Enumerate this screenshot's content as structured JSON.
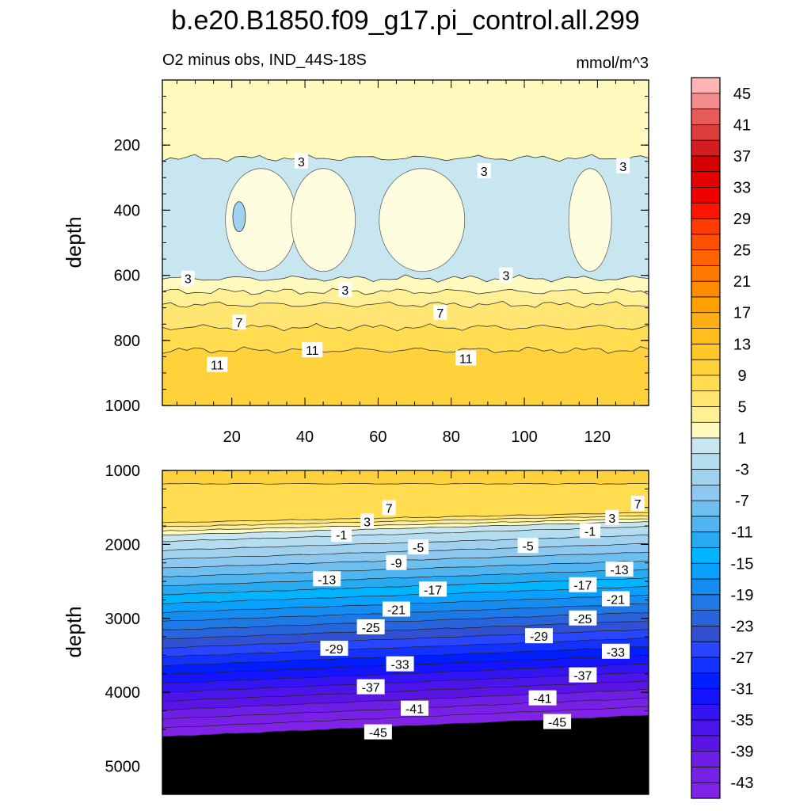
{
  "chart_data": {
    "type": "contour",
    "title": "b.e20.B1850.f09_g17.pi_control.all.299",
    "subtitle": "O2 minus obs, IND_44S-18S",
    "units": "mmol/m^3",
    "colorbar": {
      "levels": [
        47,
        45,
        43,
        41,
        39,
        37,
        35,
        33,
        31,
        29,
        27,
        25,
        23,
        21,
        19,
        17,
        15,
        13,
        11,
        9,
        7,
        5,
        3,
        1,
        -1,
        -3,
        -5,
        -7,
        -9,
        -11,
        -13,
        -15,
        -17,
        -19,
        -21,
        -23,
        -25,
        -27,
        -29,
        -31,
        -33,
        -35,
        -37,
        -39,
        -41,
        -43,
        -45,
        -47
      ],
      "tick_labels": [
        "45",
        "41",
        "37",
        "33",
        "29",
        "25",
        "21",
        "17",
        "13",
        "9",
        "5",
        "1",
        "-3",
        "-7",
        "-11",
        "-15",
        "-19",
        "-23",
        "-27",
        "-31",
        "-35",
        "-39",
        "-43"
      ],
      "colors": [
        "#ffb4b4",
        "#f08c8c",
        "#e65a5a",
        "#dc3c3c",
        "#d21e1e",
        "#d70000",
        "#e60000",
        "#f00000",
        "#ff1400",
        "#ff3c00",
        "#ff5000",
        "#ff6400",
        "#ff7800",
        "#ff8c00",
        "#ffa000",
        "#ffaf14",
        "#ffbe1e",
        "#ffc828",
        "#ffd23c",
        "#ffdc50",
        "#ffe673",
        "#fff096",
        "#fffabe",
        "#c8e6f0",
        "#b4def0",
        "#a0d2f0",
        "#8cc8f0",
        "#6ebeef",
        "#50b4f0",
        "#28aaf0",
        "#00b4ff",
        "#0aa0ff",
        "#148cf0",
        "#1e78e6",
        "#2864dc",
        "#3250d2",
        "#2846ff",
        "#1432ff",
        "#001eff",
        "#1414ff",
        "#3214f5",
        "#4b14eb",
        "#5a14e6",
        "#6e1ee6",
        "#7820e6",
        "#8022e8"
      ]
    },
    "panels": [
      {
        "name": "upper",
        "ylabel": "depth",
        "xlim": [
          1,
          134
        ],
        "ylim": [
          1000,
          0
        ],
        "xticks": [
          20,
          40,
          60,
          80,
          100,
          120
        ],
        "yticks": [
          200,
          400,
          600,
          800,
          1000
        ],
        "bands": [
          {
            "top": 0,
            "bottom": 240,
            "value": 3
          },
          {
            "top": 240,
            "bottom": 610,
            "value": 1
          },
          {
            "top": 610,
            "bottom": 650,
            "value": 3
          },
          {
            "top": 650,
            "bottom": 690,
            "value": 5
          },
          {
            "top": 690,
            "bottom": 760,
            "value": 7
          },
          {
            "top": 760,
            "bottom": 830,
            "value": 9
          },
          {
            "top": 830,
            "bottom": 1000,
            "value": 11
          }
        ],
        "contour_labels": [
          {
            "text": "3",
            "x": 39,
            "y": 250
          },
          {
            "text": "3",
            "x": 89,
            "y": 280
          },
          {
            "text": "3",
            "x": 127,
            "y": 265
          },
          {
            "text": "3",
            "x": 8,
            "y": 610
          },
          {
            "text": "3",
            "x": 51,
            "y": 645
          },
          {
            "text": "3",
            "x": 95,
            "y": 600
          },
          {
            "text": "7",
            "x": 22,
            "y": 745
          },
          {
            "text": "7",
            "x": 77,
            "y": 715
          },
          {
            "text": "11",
            "x": 16,
            "y": 875
          },
          {
            "text": "11",
            "x": 42,
            "y": 830
          },
          {
            "text": "11",
            "x": 84,
            "y": 855
          }
        ]
      },
      {
        "name": "lower",
        "ylabel": "depth",
        "xlim": [
          1,
          134
        ],
        "ylim": [
          5380,
          1000
        ],
        "xticks": [],
        "yticks": [
          1000,
          2000,
          3000,
          4000,
          5000
        ],
        "contour_labels": [
          {
            "text": "7",
            "x": 63,
            "y": 1510
          },
          {
            "text": "3",
            "x": 57,
            "y": 1690
          },
          {
            "text": "-1",
            "x": 50,
            "y": 1870
          },
          {
            "text": "-5",
            "x": 71,
            "y": 2040
          },
          {
            "text": "-5",
            "x": 101,
            "y": 2020
          },
          {
            "text": "-9",
            "x": 65,
            "y": 2250
          },
          {
            "text": "-13",
            "x": 46,
            "y": 2470
          },
          {
            "text": "-17",
            "x": 75,
            "y": 2610
          },
          {
            "text": "-21",
            "x": 65,
            "y": 2880
          },
          {
            "text": "-25",
            "x": 58,
            "y": 3120
          },
          {
            "text": "-29",
            "x": 48,
            "y": 3410
          },
          {
            "text": "-33",
            "x": 66,
            "y": 3620
          },
          {
            "text": "-37",
            "x": 58,
            "y": 3930
          },
          {
            "text": "-41",
            "x": 70,
            "y": 4220
          },
          {
            "text": "-45",
            "x": 60,
            "y": 4540
          },
          {
            "text": "7",
            "x": 131,
            "y": 1450
          },
          {
            "text": "3",
            "x": 124,
            "y": 1640
          },
          {
            "text": "-1",
            "x": 118,
            "y": 1820
          },
          {
            "text": "-13",
            "x": 126,
            "y": 2340
          },
          {
            "text": "-17",
            "x": 116,
            "y": 2550
          },
          {
            "text": "-21",
            "x": 125,
            "y": 2740
          },
          {
            "text": "-25",
            "x": 116,
            "y": 3000
          },
          {
            "text": "-29",
            "x": 104,
            "y": 3240
          },
          {
            "text": "-33",
            "x": 125,
            "y": 3450
          },
          {
            "text": "-37",
            "x": 116,
            "y": 3770
          },
          {
            "text": "-41",
            "x": 105,
            "y": 4080
          },
          {
            "text": "-45",
            "x": 109,
            "y": 4400
          }
        ]
      }
    ]
  }
}
